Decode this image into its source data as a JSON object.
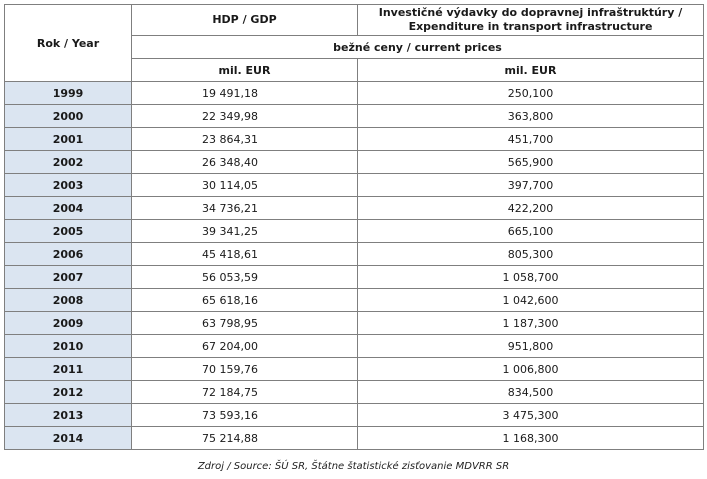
{
  "header": {
    "rok_year": "Rok / Year",
    "hdp_gdp": "HDP / GDP",
    "investment_line1": "Investičné výdavky do dopravnej infraštruktúry /",
    "investment_line2": "Expenditure in transport infrastructure",
    "prices": "bežné ceny / current prices",
    "unit_gdp": "mil. EUR",
    "unit_exp": "mil. EUR"
  },
  "rows": [
    {
      "year": "1999",
      "gdp": "19 491,18",
      "exp": "250,100"
    },
    {
      "year": "2000",
      "gdp": "22 349,98",
      "exp": "363,800"
    },
    {
      "year": "2001",
      "gdp": "23 864,31",
      "exp": "451,700"
    },
    {
      "year": "2002",
      "gdp": "26 348,40",
      "exp": "565,900"
    },
    {
      "year": "2003",
      "gdp": "30 114,05",
      "exp": "397,700"
    },
    {
      "year": "2004",
      "gdp": "34 736,21",
      "exp": "422,200"
    },
    {
      "year": "2005",
      "gdp": "39 341,25",
      "exp": "665,100"
    },
    {
      "year": "2006",
      "gdp": "45 418,61",
      "exp": "805,300"
    },
    {
      "year": "2007",
      "gdp": "56 053,59",
      "exp": "1 058,700"
    },
    {
      "year": "2008",
      "gdp": "65 618,16",
      "exp": "1 042,600"
    },
    {
      "year": "2009",
      "gdp": "63 798,95",
      "exp": "1 187,300"
    },
    {
      "year": "2010",
      "gdp": "67 204,00",
      "exp": "951,800"
    },
    {
      "year": "2011",
      "gdp": "70 159,76",
      "exp": "1 006,800"
    },
    {
      "year": "2012",
      "gdp": "72 184,75",
      "exp": "834,500"
    },
    {
      "year": "2013",
      "gdp": "73 593,16",
      "exp": "3 475,300"
    },
    {
      "year": "2014",
      "gdp": "75 214,88",
      "exp": "1 168,300"
    }
  ],
  "source": "Zdroj / Source: ŠÚ SR, Štátne štatistické zisťovanie MDVRR SR",
  "colors": {
    "year_bg": "#dbe5f1",
    "border": "#7f7f7f"
  }
}
